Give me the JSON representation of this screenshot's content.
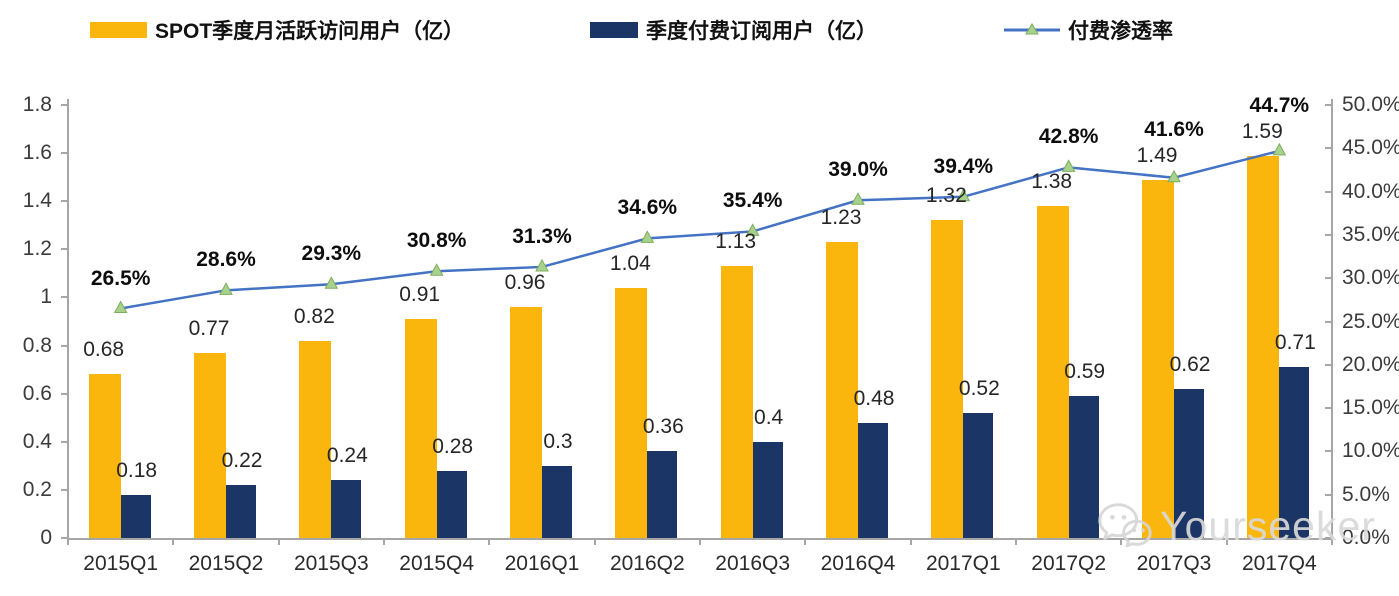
{
  "chart_data": {
    "type": "bar",
    "subtype": "combo-bar-line",
    "title": "",
    "categories": [
      "2015Q1",
      "2015Q2",
      "2015Q3",
      "2015Q4",
      "2016Q1",
      "2016Q2",
      "2016Q3",
      "2016Q4",
      "2017Q1",
      "2017Q2",
      "2017Q3",
      "2017Q4"
    ],
    "series": [
      {
        "name": "SPOT季度月活跃访问用户（亿）",
        "type": "bar",
        "axis": "left",
        "color": "#FBB60D",
        "values": [
          0.68,
          0.77,
          0.82,
          0.91,
          0.96,
          1.04,
          1.13,
          1.23,
          1.32,
          1.38,
          1.49,
          1.59
        ],
        "labels": [
          "0.68",
          "0.77",
          "0.82",
          "0.91",
          "0.96",
          "1.04",
          "1.13",
          "1.23",
          "1.32",
          "1.38",
          "1.49",
          "1.59"
        ]
      },
      {
        "name": "季度付费订阅用户（亿）",
        "type": "bar",
        "axis": "left",
        "color": "#1B3566",
        "values": [
          0.18,
          0.22,
          0.24,
          0.28,
          0.3,
          0.36,
          0.4,
          0.48,
          0.52,
          0.59,
          0.62,
          0.71
        ],
        "labels": [
          "0.18",
          "0.22",
          "0.24",
          "0.28",
          "0.3",
          "0.36",
          "0.4",
          "0.48",
          "0.52",
          "0.59",
          "0.62",
          "0.71"
        ]
      },
      {
        "name": "付费渗透率",
        "type": "line",
        "axis": "right",
        "color": "#4472C4",
        "marker_fill": "#A9D18E",
        "marker_stroke": "#7CAF5A",
        "values": [
          26.5,
          28.6,
          29.3,
          30.8,
          31.3,
          34.6,
          35.4,
          39.0,
          39.4,
          42.8,
          41.6,
          44.7
        ],
        "labels": [
          "26.5%",
          "28.6%",
          "29.3%",
          "30.8%",
          "31.3%",
          "34.6%",
          "35.4%",
          "39.0%",
          "39.4%",
          "42.8%",
          "41.6%",
          "44.7%"
        ]
      }
    ],
    "left_axis": {
      "min": 0,
      "max": 1.8,
      "tick_values": [
        0,
        0.2,
        0.4,
        0.6,
        0.8,
        1,
        1.2,
        1.4,
        1.6,
        1.8
      ],
      "tick_labels": [
        "0",
        "0.2",
        "0.4",
        "0.6",
        "0.8",
        "1",
        "1.2",
        "1.4",
        "1.6",
        "1.8"
      ]
    },
    "right_axis": {
      "min": 0,
      "max": 50,
      "tick_values": [
        0,
        5,
        10,
        15,
        20,
        25,
        30,
        35,
        40,
        45,
        50
      ],
      "tick_labels": [
        "0.0%",
        "5.0%",
        "10.0%",
        "15.0%",
        "20.0%",
        "25.0%",
        "30.0%",
        "35.0%",
        "40.0%",
        "45.0%",
        "50.0%"
      ]
    },
    "legend_position": "top",
    "grid": false
  },
  "watermark": {
    "text": "Yourseeker",
    "icon": "wechat-icon",
    "color": "#D9D9D9"
  }
}
